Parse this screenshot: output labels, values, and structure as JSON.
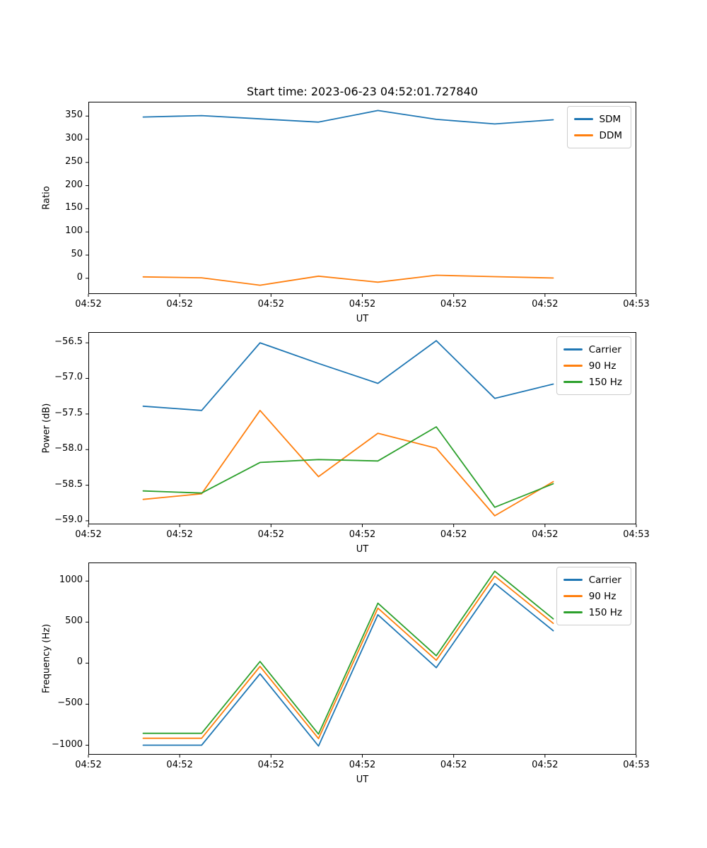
{
  "figure": {
    "title": "Start time: 2023-06-23 04:52:01.727840",
    "background_color": "#ffffff",
    "spine_color": "#000000",
    "legend_border_color": "#cccccc"
  },
  "chart_data": [
    {
      "type": "line",
      "title": "Start time: 2023-06-23 04:52:01.727840",
      "xlabel": "UT",
      "ylabel": "Ratio",
      "grid": false,
      "legend_position": "upper right",
      "x_axis": {
        "tick_labels": [
          "04:52",
          "04:52",
          "04:52",
          "04:52",
          "04:52",
          "04:52",
          "04:53"
        ],
        "tick_seconds": [
          0,
          10,
          20,
          30,
          40,
          50,
          60
        ],
        "range_seconds": [
          0,
          60
        ]
      },
      "y_axis": {
        "tick_values": [
          0,
          50,
          100,
          150,
          200,
          250,
          300,
          350
        ],
        "tick_labels": [
          "0",
          "50",
          "100",
          "150",
          "200",
          "250",
          "300",
          "350"
        ],
        "range": [
          -33.9,
          380.9
        ]
      },
      "x_seconds": [
        6.0,
        12.4,
        18.8,
        25.2,
        31.7,
        38.1,
        44.5,
        50.9
      ],
      "series": [
        {
          "name": "SDM",
          "color": "#1f77b4",
          "values": [
            348,
            351,
            344,
            337,
            362,
            343,
            333,
            342
          ]
        },
        {
          "name": "DDM",
          "color": "#ff7f0e",
          "values": [
            3,
            1,
            -15,
            4.5,
            -8.5,
            6.5,
            3.5,
            0.5
          ]
        }
      ]
    },
    {
      "type": "line",
      "title": "",
      "xlabel": "UT",
      "ylabel": "Power (dB)",
      "grid": false,
      "legend_position": "upper right",
      "x_axis": {
        "tick_labels": [
          "04:52",
          "04:52",
          "04:52",
          "04:52",
          "04:52",
          "04:52",
          "04:53"
        ],
        "tick_seconds": [
          0,
          10,
          20,
          30,
          40,
          50,
          60
        ],
        "range_seconds": [
          0,
          60
        ]
      },
      "y_axis": {
        "tick_values": [
          -56.5,
          -57.0,
          -57.5,
          -58.0,
          -58.5,
          -59.0
        ],
        "tick_labels": [
          "−56.5",
          "−57.0",
          "−57.5",
          "−58.0",
          "−58.5",
          "−59.0"
        ],
        "range": [
          -59.05,
          -56.35
        ]
      },
      "x_seconds": [
        6.0,
        12.4,
        18.8,
        25.2,
        31.7,
        38.1,
        44.5,
        50.9
      ],
      "series": [
        {
          "name": "Carrier",
          "color": "#1f77b4",
          "values": [
            -57.39,
            -57.45,
            -56.5,
            -56.79,
            -57.07,
            -56.47,
            -57.28,
            -57.08
          ]
        },
        {
          "name": "90 Hz",
          "color": "#ff7f0e",
          "values": [
            -58.7,
            -58.62,
            -57.45,
            -58.38,
            -57.77,
            -57.98,
            -58.93,
            -58.45
          ]
        },
        {
          "name": "150 Hz",
          "color": "#2ca02c",
          "values": [
            -58.58,
            -58.61,
            -58.18,
            -58.14,
            -58.16,
            -57.68,
            -58.81,
            -58.48
          ]
        }
      ]
    },
    {
      "type": "line",
      "title": "",
      "xlabel": "UT",
      "ylabel": "Frequency (Hz)",
      "grid": false,
      "legend_position": "upper right",
      "x_axis": {
        "tick_labels": [
          "04:52",
          "04:52",
          "04:52",
          "04:52",
          "04:52",
          "04:52",
          "04:53"
        ],
        "tick_seconds": [
          0,
          10,
          20,
          30,
          40,
          50,
          60
        ],
        "range_seconds": [
          0,
          60
        ]
      },
      "y_axis": {
        "tick_values": [
          1000,
          500,
          0,
          -500,
          -1000
        ],
        "tick_labels": [
          "1000",
          "500",
          "0",
          "−500",
          "−1000"
        ],
        "range": [
          -1116,
          1226
        ]
      },
      "x_seconds": [
        6.0,
        12.4,
        18.8,
        25.2,
        31.7,
        38.1,
        44.5,
        50.9
      ],
      "series": [
        {
          "name": "Carrier",
          "color": "#1f77b4",
          "values": [
            -1000,
            -1000,
            -130,
            -1010,
            590,
            -55,
            970,
            395
          ]
        },
        {
          "name": "90 Hz",
          "color": "#ff7f0e",
          "values": [
            -915,
            -915,
            -40,
            -920,
            670,
            35,
            1060,
            485
          ]
        },
        {
          "name": "150 Hz",
          "color": "#2ca02c",
          "values": [
            -855,
            -855,
            20,
            -865,
            730,
            90,
            1120,
            540
          ]
        }
      ]
    }
  ]
}
